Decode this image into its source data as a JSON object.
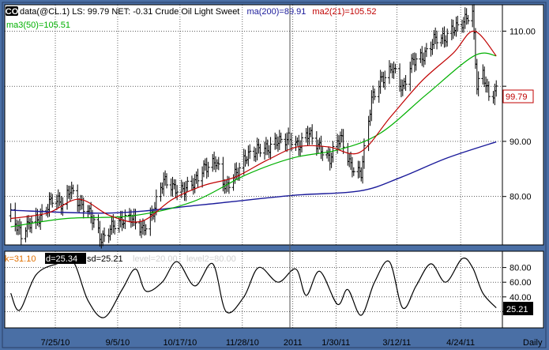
{
  "header": {
    "symbol_icon": "CO",
    "info": "data(@CL.1) LS: 99.79  NET: -0.31   Crude Oil Light Sweet",
    "ma200_label": "ma(200)=89.91",
    "ma21_label": "ma2(21)=105.52",
    "ma50_label": "ma3(50)=105.51"
  },
  "stoch_header": {
    "k_label": "k=31.10",
    "d_label": "d=25.34",
    "sd_label": "sd=25.21",
    "level1_label": "level=20.00",
    "level2_label": "level2=80.00"
  },
  "price_badge": "99.79",
  "stoch_badge": "25.21",
  "interval_label": "Daily",
  "colors": {
    "background": "#4a6fa5",
    "price_bars": "#000000",
    "ma200": "#1a1a9a",
    "ma21": "#c00000",
    "ma50": "#00b000",
    "stochastic": "#000000",
    "k_label": "#e07000",
    "d_label_bg": "#000000",
    "level_labels": "#d0d0d0",
    "price_badge": "#c00000"
  },
  "chart_data": {
    "type": "bar",
    "subtype": "ohlc-price-with-stochastic",
    "x_ticks": [
      "7/25/10",
      "9/5/10",
      "10/17/10",
      "11/28/10",
      "2011",
      "1/30/11",
      "3/12/11",
      "4/24/11"
    ],
    "price_panel": {
      "yticks": [
        80.0,
        90.0,
        100.0,
        110.0
      ],
      "ytick_labels": [
        "80.00",
        "90.00",
        "",
        "110.00"
      ],
      "ylim": [
        71.5,
        114.5
      ],
      "grid": true,
      "close_points": [
        {
          "d": "2010-06-25",
          "c": 76.5
        },
        {
          "d": "2010-07-02",
          "c": 72.5
        },
        {
          "d": "2010-07-09",
          "c": 76.0
        },
        {
          "d": "2010-07-16",
          "c": 76.8
        },
        {
          "d": "2010-07-23",
          "c": 79.0
        },
        {
          "d": "2010-07-30",
          "c": 78.5
        },
        {
          "d": "2010-08-04",
          "c": 82.0
        },
        {
          "d": "2010-08-11",
          "c": 78.5
        },
        {
          "d": "2010-08-18",
          "c": 76.0
        },
        {
          "d": "2010-08-25",
          "c": 72.5
        },
        {
          "d": "2010-09-01",
          "c": 75.0
        },
        {
          "d": "2010-09-08",
          "c": 75.0
        },
        {
          "d": "2010-09-15",
          "c": 76.0
        },
        {
          "d": "2010-09-22",
          "c": 74.5
        },
        {
          "d": "2010-09-29",
          "c": 77.0
        },
        {
          "d": "2010-10-06",
          "c": 82.5
        },
        {
          "d": "2010-10-13",
          "c": 82.0
        },
        {
          "d": "2010-10-20",
          "c": 81.5
        },
        {
          "d": "2010-10-27",
          "c": 82.0
        },
        {
          "d": "2010-11-03",
          "c": 85.5
        },
        {
          "d": "2010-11-10",
          "c": 87.0
        },
        {
          "d": "2010-11-17",
          "c": 81.0
        },
        {
          "d": "2010-11-24",
          "c": 84.0
        },
        {
          "d": "2010-12-01",
          "c": 88.0
        },
        {
          "d": "2010-12-08",
          "c": 88.5
        },
        {
          "d": "2010-12-15",
          "c": 88.0
        },
        {
          "d": "2010-12-22",
          "c": 90.5
        },
        {
          "d": "2010-12-29",
          "c": 91.0
        },
        {
          "d": "2011-01-05",
          "c": 88.5
        },
        {
          "d": "2011-01-12",
          "c": 91.5
        },
        {
          "d": "2011-01-19",
          "c": 89.5
        },
        {
          "d": "2011-01-26",
          "c": 86.5
        },
        {
          "d": "2011-02-02",
          "c": 90.5
        },
        {
          "d": "2011-02-09",
          "c": 86.0
        },
        {
          "d": "2011-02-16",
          "c": 84.5
        },
        {
          "d": "2011-02-23",
          "c": 97.0
        },
        {
          "d": "2011-03-02",
          "c": 101.5
        },
        {
          "d": "2011-03-09",
          "c": 104.0
        },
        {
          "d": "2011-03-16",
          "c": 99.0
        },
        {
          "d": "2011-03-23",
          "c": 104.5
        },
        {
          "d": "2011-03-30",
          "c": 106.0
        },
        {
          "d": "2011-04-06",
          "c": 108.5
        },
        {
          "d": "2011-04-13",
          "c": 108.0
        },
        {
          "d": "2011-04-20",
          "c": 111.0
        },
        {
          "d": "2011-04-27",
          "c": 112.5
        },
        {
          "d": "2011-05-02",
          "c": 113.0
        },
        {
          "d": "2011-05-05",
          "c": 99.5
        },
        {
          "d": "2011-05-09",
          "c": 102.0
        },
        {
          "d": "2011-05-13",
          "c": 98.5
        },
        {
          "d": "2011-05-18",
          "c": 99.79
        }
      ],
      "ma200": [
        {
          "d": "2010-06-25",
          "c": 77.5
        },
        {
          "d": "2010-09-01",
          "c": 77.0
        },
        {
          "d": "2010-11-01",
          "c": 78.5
        },
        {
          "d": "2011-01-01",
          "c": 80.2
        },
        {
          "d": "2011-02-15",
          "c": 81.0
        },
        {
          "d": "2011-03-15",
          "c": 83.5
        },
        {
          "d": "2011-04-15",
          "c": 87.0
        },
        {
          "d": "2011-05-18",
          "c": 89.91
        }
      ],
      "ma21": [
        {
          "d": "2010-06-25",
          "c": 76.0
        },
        {
          "d": "2010-07-20",
          "c": 77.0
        },
        {
          "d": "2010-08-10",
          "c": 79.5
        },
        {
          "d": "2010-08-31",
          "c": 76.5
        },
        {
          "d": "2010-09-21",
          "c": 75.5
        },
        {
          "d": "2010-10-12",
          "c": 79.5
        },
        {
          "d": "2010-11-02",
          "c": 82.0
        },
        {
          "d": "2010-11-23",
          "c": 83.5
        },
        {
          "d": "2010-12-14",
          "c": 86.5
        },
        {
          "d": "2011-01-04",
          "c": 89.0
        },
        {
          "d": "2011-01-25",
          "c": 89.0
        },
        {
          "d": "2011-02-15",
          "c": 88.0
        },
        {
          "d": "2011-03-08",
          "c": 94.5
        },
        {
          "d": "2011-03-29",
          "c": 101.0
        },
        {
          "d": "2011-04-19",
          "c": 106.0
        },
        {
          "d": "2011-05-03",
          "c": 110.0
        },
        {
          "d": "2011-05-18",
          "c": 105.52
        }
      ],
      "ma50": [
        {
          "d": "2010-06-25",
          "c": 74.5
        },
        {
          "d": "2010-08-01",
          "c": 76.0
        },
        {
          "d": "2010-09-15",
          "c": 76.5
        },
        {
          "d": "2010-10-25",
          "c": 79.0
        },
        {
          "d": "2010-12-01",
          "c": 84.0
        },
        {
          "d": "2011-01-01",
          "c": 87.0
        },
        {
          "d": "2011-02-01",
          "c": 88.5
        },
        {
          "d": "2011-03-01",
          "c": 91.5
        },
        {
          "d": "2011-04-01",
          "c": 98.5
        },
        {
          "d": "2011-05-03",
          "c": 105.5
        },
        {
          "d": "2011-05-18",
          "c": 105.51
        }
      ]
    },
    "stoch_panel": {
      "yticks": [
        20,
        40,
        60,
        80
      ],
      "ytick_labels": [
        "",
        "40.00",
        "60.00",
        "80.00"
      ],
      "ylim": [
        0,
        100
      ],
      "levels": [
        20,
        80
      ],
      "grid": true,
      "points": [
        {
          "d": "2010-06-25",
          "c": 45
        },
        {
          "d": "2010-07-01",
          "c": 22
        },
        {
          "d": "2010-07-12",
          "c": 70
        },
        {
          "d": "2010-07-26",
          "c": 85
        },
        {
          "d": "2010-08-06",
          "c": 88
        },
        {
          "d": "2010-08-16",
          "c": 35
        },
        {
          "d": "2010-08-27",
          "c": 12
        },
        {
          "d": "2010-09-08",
          "c": 50
        },
        {
          "d": "2010-09-17",
          "c": 78
        },
        {
          "d": "2010-09-24",
          "c": 48
        },
        {
          "d": "2010-10-05",
          "c": 60
        },
        {
          "d": "2010-10-15",
          "c": 88
        },
        {
          "d": "2010-10-27",
          "c": 55
        },
        {
          "d": "2010-11-08",
          "c": 85
        },
        {
          "d": "2010-11-17",
          "c": 20
        },
        {
          "d": "2010-11-29",
          "c": 40
        },
        {
          "d": "2010-12-09",
          "c": 80
        },
        {
          "d": "2010-12-22",
          "c": 60
        },
        {
          "d": "2011-01-03",
          "c": 78
        },
        {
          "d": "2011-01-10",
          "c": 42
        },
        {
          "d": "2011-01-19",
          "c": 75
        },
        {
          "d": "2011-01-31",
          "c": 30
        },
        {
          "d": "2011-02-07",
          "c": 50
        },
        {
          "d": "2011-02-16",
          "c": 15
        },
        {
          "d": "2011-02-25",
          "c": 60
        },
        {
          "d": "2011-03-07",
          "c": 88
        },
        {
          "d": "2011-03-16",
          "c": 25
        },
        {
          "d": "2011-03-25",
          "c": 55
        },
        {
          "d": "2011-04-04",
          "c": 85
        },
        {
          "d": "2011-04-14",
          "c": 60
        },
        {
          "d": "2011-04-25",
          "c": 92
        },
        {
          "d": "2011-05-02",
          "c": 80
        },
        {
          "d": "2011-05-09",
          "c": 45
        },
        {
          "d": "2011-05-18",
          "c": 25.21
        }
      ]
    }
  }
}
